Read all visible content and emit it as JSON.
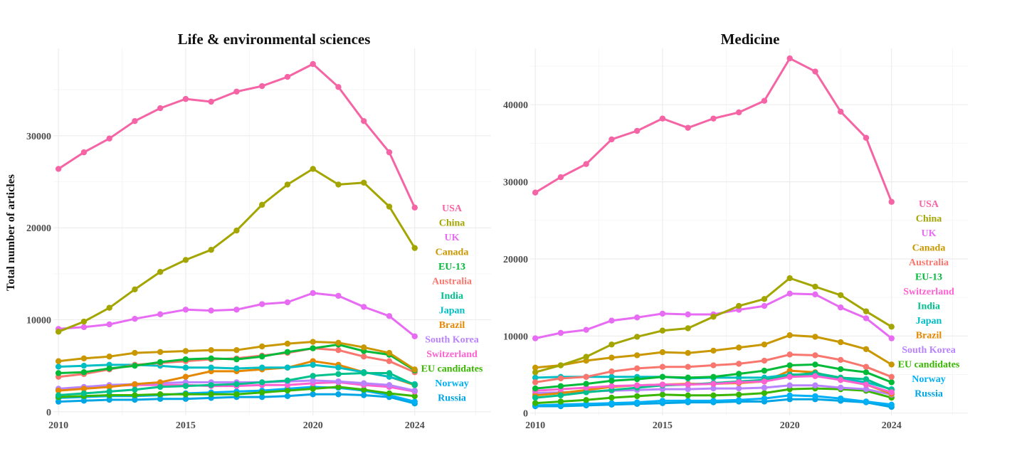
{
  "chart_data": [
    {
      "type": "line",
      "title": "Life & environmental sciences",
      "ylabel": "Total number of articles",
      "xlabel": "",
      "xlim": [
        2009.8,
        2027.0
      ],
      "ylim": [
        -400,
        39500
      ],
      "x_ticks": [
        2010,
        2015,
        2020,
        2024
      ],
      "y_ticks": [
        0,
        10000,
        20000,
        30000
      ],
      "y_tick_labels": [
        "0",
        "10000",
        "20000",
        "30000"
      ],
      "grid": true,
      "legend": "direct labels at right",
      "x": [
        2010,
        2011,
        2012,
        2013,
        2014,
        2015,
        2016,
        2017,
        2018,
        2019,
        2020,
        2021,
        2022,
        2023,
        2024
      ],
      "series": [
        {
          "name": "USA",
          "color": "#F564A4",
          "values": [
            26400,
            28200,
            29700,
            31600,
            33000,
            34000,
            33700,
            34800,
            35400,
            36400,
            37800,
            35300,
            31600,
            28200,
            22200
          ]
        },
        {
          "name": "China",
          "color": "#A3A500",
          "values": [
            8700,
            9800,
            11300,
            13300,
            15200,
            16500,
            17600,
            19700,
            22500,
            24700,
            26400,
            24700,
            24900,
            22300,
            17800
          ]
        },
        {
          "name": "UK",
          "color": "#E76BF3",
          "values": [
            9000,
            9200,
            9500,
            10100,
            10600,
            11100,
            11000,
            11100,
            11700,
            11900,
            12900,
            12600,
            11400,
            10400,
            8200
          ]
        },
        {
          "name": "Canada",
          "color": "#C99800",
          "values": [
            5500,
            5800,
            6000,
            6400,
            6500,
            6600,
            6700,
            6700,
            7100,
            7400,
            7600,
            7500,
            7000,
            6400,
            4600
          ]
        },
        {
          "name": "EU-13",
          "color": "#00BA38",
          "values": [
            4200,
            4300,
            4700,
            5000,
            5400,
            5700,
            5800,
            5700,
            6000,
            6500,
            6900,
            7300,
            6600,
            6200,
            4500
          ]
        },
        {
          "name": "Australia",
          "color": "#F8766D",
          "values": [
            3800,
            4100,
            4600,
            5100,
            5300,
            5500,
            5700,
            5800,
            6100,
            6400,
            6900,
            6700,
            6000,
            5500,
            4300
          ]
        },
        {
          "name": "India",
          "color": "#00C08B",
          "values": [
            1800,
            2000,
            2200,
            2400,
            2700,
            2800,
            2900,
            3000,
            3200,
            3400,
            3900,
            4100,
            4200,
            4200,
            2900
          ]
        },
        {
          "name": "Japan",
          "color": "#00BFC4",
          "values": [
            4900,
            5000,
            5100,
            5100,
            5000,
            4800,
            4800,
            4700,
            4800,
            4800,
            5100,
            4800,
            4300,
            3800,
            3000
          ]
        },
        {
          "name": "Brazil",
          "color": "#E58700",
          "values": [
            2300,
            2500,
            2700,
            3000,
            3200,
            3800,
            4400,
            4400,
            4600,
            4800,
            5500,
            5100,
            4300,
            3800,
            2900
          ]
        },
        {
          "name": "South Korea",
          "color": "#B983FF",
          "values": [
            2500,
            2700,
            2900,
            3000,
            3100,
            3200,
            3200,
            3200,
            3200,
            3300,
            3400,
            3300,
            3100,
            2900,
            2300
          ]
        },
        {
          "name": "Switzerland",
          "color": "#FD61D1",
          "values": [
            2400,
            2600,
            2800,
            2900,
            2900,
            2900,
            2800,
            2800,
            2900,
            2900,
            3100,
            3200,
            2900,
            2700,
            2200
          ]
        },
        {
          "name": "EU candidates",
          "color": "#39B600",
          "values": [
            1600,
            1700,
            1800,
            1800,
            1900,
            1900,
            1900,
            1900,
            2100,
            2300,
            2500,
            2700,
            2400,
            2000,
            1700
          ]
        },
        {
          "name": "Norway",
          "color": "#00B0F6",
          "values": [
            1500,
            1600,
            1700,
            1700,
            1800,
            2000,
            2100,
            2200,
            2300,
            2500,
            2700,
            2600,
            2300,
            1800,
            1100
          ]
        },
        {
          "name": "Russia",
          "color": "#00A5E3",
          "values": [
            1100,
            1200,
            1300,
            1300,
            1400,
            1400,
            1500,
            1600,
            1600,
            1700,
            1900,
            1900,
            1800,
            1600,
            900
          ]
        }
      ],
      "label_order": [
        "USA",
        "China",
        "UK",
        "Canada",
        "EU-13",
        "Australia",
        "India",
        "Japan",
        "Brazil",
        "South Korea",
        "Switzerland",
        "EU candidates",
        "Norway",
        "Russia"
      ]
    },
    {
      "type": "line",
      "title": "Medicine",
      "ylabel": "",
      "xlabel": "",
      "xlim": [
        2009.8,
        2027.0
      ],
      "ylim": [
        -300,
        47300
      ],
      "x_ticks": [
        2010,
        2015,
        2020,
        2024
      ],
      "y_ticks": [
        0,
        10000,
        20000,
        30000,
        40000
      ],
      "y_tick_labels": [
        "0",
        "10000",
        "20000",
        "30000",
        "40000"
      ],
      "grid": true,
      "legend": "direct labels at right",
      "x": [
        2010,
        2011,
        2012,
        2013,
        2014,
        2015,
        2016,
        2017,
        2018,
        2019,
        2020,
        2021,
        2022,
        2023,
        2024
      ],
      "series": [
        {
          "name": "USA",
          "color": "#F564A4",
          "values": [
            28600,
            30600,
            32300,
            35500,
            36600,
            38200,
            37000,
            38200,
            39000,
            40500,
            46000,
            44300,
            39100,
            35700,
            27400
          ]
        },
        {
          "name": "China",
          "color": "#A3A500",
          "values": [
            5300,
            6200,
            7300,
            8900,
            9900,
            10700,
            11000,
            12500,
            13900,
            14800,
            17500,
            16400,
            15300,
            13200,
            11200
          ]
        },
        {
          "name": "UK",
          "color": "#E76BF3",
          "values": [
            9700,
            10400,
            10800,
            12000,
            12400,
            12900,
            12800,
            12800,
            13400,
            13900,
            15500,
            15400,
            13700,
            12300,
            9700
          ]
        },
        {
          "name": "Canada",
          "color": "#C99800",
          "values": [
            5900,
            6200,
            6800,
            7200,
            7500,
            7900,
            7800,
            8100,
            8500,
            8900,
            10100,
            9900,
            9200,
            8300,
            6300
          ]
        },
        {
          "name": "Australia",
          "color": "#F8766D",
          "values": [
            4000,
            4500,
            4700,
            5400,
            5800,
            6000,
            6000,
            6200,
            6400,
            6800,
            7600,
            7500,
            6900,
            6000,
            4700
          ]
        },
        {
          "name": "EU-13",
          "color": "#00BA38",
          "values": [
            3200,
            3500,
            3800,
            4200,
            4400,
            4700,
            4600,
            4700,
            5100,
            5500,
            6200,
            6300,
            5700,
            5300,
            4000
          ]
        },
        {
          "name": "Switzerland",
          "color": "#FD61D1",
          "values": [
            2900,
            3100,
            3300,
            3500,
            3600,
            3700,
            3700,
            3800,
            4000,
            4100,
            4700,
            4800,
            4300,
            3700,
            2700
          ]
        },
        {
          "name": "India",
          "color": "#00C08B",
          "values": [
            2000,
            2300,
            2700,
            3000,
            3300,
            3600,
            3700,
            3900,
            4100,
            4300,
            4900,
            5200,
            4600,
            4400,
            3000
          ]
        },
        {
          "name": "Japan",
          "color": "#00BFC4",
          "values": [
            4600,
            4700,
            4700,
            4700,
            4700,
            4700,
            4500,
            4600,
            4600,
            4600,
            5000,
            5000,
            4500,
            4000,
            3100
          ]
        },
        {
          "name": "Brazil",
          "color": "#E58700",
          "values": [
            2300,
            2600,
            3000,
            3400,
            3600,
            3700,
            3800,
            3800,
            3900,
            4100,
            5500,
            5300,
            4300,
            3700,
            2500
          ]
        },
        {
          "name": "South Korea",
          "color": "#B983FF",
          "values": [
            2600,
            2700,
            2800,
            2900,
            3000,
            3100,
            3100,
            3200,
            3200,
            3300,
            3600,
            3600,
            3300,
            3100,
            2400
          ]
        },
        {
          "name": "EU candidates",
          "color": "#39B600",
          "values": [
            1300,
            1500,
            1700,
            2000,
            2200,
            2400,
            2300,
            2300,
            2400,
            2600,
            3100,
            3200,
            3100,
            2900,
            2000
          ]
        },
        {
          "name": "Norway",
          "color": "#00B0F6",
          "values": [
            1000,
            1100,
            1200,
            1300,
            1400,
            1600,
            1600,
            1600,
            1700,
            1900,
            2300,
            2200,
            1900,
            1500,
            1100
          ]
        },
        {
          "name": "Russia",
          "color": "#00A5E3",
          "values": [
            900,
            900,
            1000,
            1100,
            1200,
            1300,
            1400,
            1400,
            1500,
            1500,
            1800,
            1800,
            1600,
            1400,
            800
          ]
        }
      ],
      "label_order": [
        "USA",
        "China",
        "UK",
        "Canada",
        "Australia",
        "EU-13",
        "Switzerland",
        "India",
        "Japan",
        "Brazil",
        "South Korea",
        "EU candidates",
        "Norway",
        "Russia"
      ]
    }
  ]
}
